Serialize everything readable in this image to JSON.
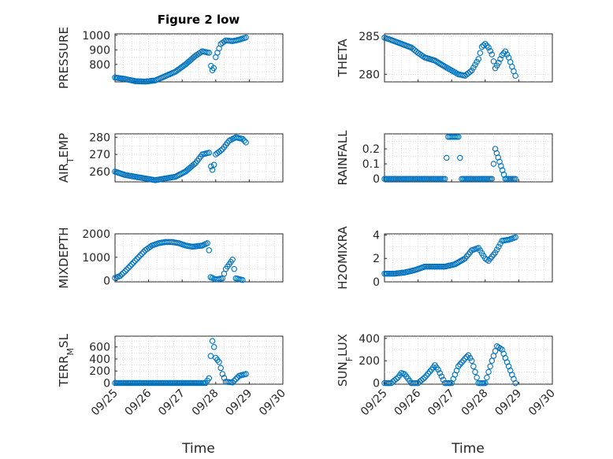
{
  "figure": {
    "title": "Figure 2 low",
    "xlabel": "Time",
    "marker_color": "#0072bd",
    "x_ticks": [
      "09/25",
      "09/26",
      "09/27",
      "09/28",
      "09/29",
      "09/30"
    ]
  },
  "chart_data": [
    {
      "type": "scatter",
      "marker": "circle",
      "ylabel": "PRESSURE",
      "xlim": [
        0,
        5
      ],
      "ylim": [
        680,
        1010
      ],
      "yticks": [
        800,
        900,
        1000
      ],
      "grid": true,
      "x": [
        0,
        0.3,
        0.6,
        0.9,
        1.2,
        1.5,
        1.8,
        2.1,
        2.4,
        2.6,
        2.8,
        2.86,
        2.9,
        2.94,
        3.0,
        3.15,
        3.3,
        3.5,
        3.7,
        3.9
      ],
      "y": [
        710,
        700,
        685,
        682,
        690,
        720,
        750,
        800,
        860,
        890,
        880,
        790,
        760,
        775,
        850,
        940,
        965,
        960,
        970,
        985
      ]
    },
    {
      "type": "scatter",
      "marker": "circle",
      "ylabel": "THETA",
      "xlim": [
        0,
        5
      ],
      "ylim": [
        279,
        285.3
      ],
      "yticks": [
        280,
        285
      ],
      "grid": true,
      "x": [
        0,
        0.2,
        0.5,
        0.8,
        1.0,
        1.2,
        1.5,
        1.8,
        2.0,
        2.2,
        2.4,
        2.6,
        2.8,
        2.9,
        3.0,
        3.1,
        3.2,
        3.3,
        3.4,
        3.5,
        3.6,
        3.7,
        3.8,
        3.9
      ],
      "y": [
        284.8,
        284.5,
        284.0,
        283.5,
        282.8,
        282.2,
        281.8,
        281.0,
        280.5,
        280.0,
        279.8,
        280.5,
        282.0,
        283.6,
        284.0,
        283.5,
        282.6,
        280.8,
        281.5,
        282.5,
        283.0,
        282.2,
        281.0,
        279.8
      ]
    },
    {
      "type": "scatter",
      "marker": "circle",
      "ylabel": "AIR_TEMP",
      "xlim": [
        0,
        5
      ],
      "ylim": [
        254,
        282
      ],
      "yticks": [
        260,
        270,
        280
      ],
      "grid": true,
      "x": [
        0,
        0.3,
        0.6,
        0.9,
        1.2,
        1.5,
        1.8,
        2.1,
        2.4,
        2.6,
        2.8,
        2.86,
        2.9,
        2.95,
        3.0,
        3.2,
        3.4,
        3.6,
        3.8,
        3.9
      ],
      "y": [
        260,
        258,
        257,
        256,
        255,
        256,
        257,
        260,
        265,
        270,
        271,
        263,
        261,
        264,
        270,
        273,
        278,
        280,
        279,
        277
      ]
    },
    {
      "type": "scatter",
      "marker": "circle",
      "ylabel": "RAINFALL",
      "xlim": [
        0,
        5
      ],
      "ylim": [
        -0.02,
        0.3
      ],
      "yticks": [
        0,
        0.1,
        0.2
      ],
      "grid": true,
      "x": [
        0,
        0.3,
        0.6,
        0.9,
        1.2,
        1.5,
        1.8,
        1.9,
        2.0,
        2.1,
        2.2,
        2.3,
        2.6,
        2.9,
        3.2,
        3.3,
        3.6,
        3.9
      ],
      "y": [
        0,
        0,
        0,
        0,
        0,
        0,
        0,
        0.28,
        0.28,
        0.28,
        0.28,
        0,
        0,
        0,
        0,
        0.2,
        0,
        0
      ]
    },
    {
      "type": "scatter",
      "marker": "circle",
      "ylabel": "MIXDEPTH",
      "xlim": [
        0,
        5
      ],
      "ylim": [
        -50,
        2000
      ],
      "yticks": [
        0,
        1000,
        2000
      ],
      "grid": true,
      "x": [
        0,
        0.15,
        0.3,
        0.5,
        0.7,
        0.9,
        1.1,
        1.3,
        1.5,
        1.7,
        1.9,
        2.1,
        2.3,
        2.6,
        2.75,
        2.8,
        2.85,
        3.0,
        3.2,
        3.3,
        3.5,
        3.6,
        3.8
      ],
      "y": [
        120,
        200,
        400,
        700,
        1000,
        1300,
        1500,
        1600,
        1650,
        1650,
        1600,
        1500,
        1450,
        1500,
        1600,
        1300,
        150,
        50,
        100,
        500,
        900,
        100,
        30
      ]
    },
    {
      "type": "scatter",
      "marker": "circle",
      "ylabel": "H2OMIXRA",
      "xlim": [
        0,
        5
      ],
      "ylim": [
        0,
        4.1
      ],
      "yticks": [
        0,
        2,
        4
      ],
      "grid": true,
      "x": [
        0,
        0.3,
        0.6,
        0.9,
        1.2,
        1.5,
        1.8,
        2.1,
        2.4,
        2.6,
        2.8,
        3.0,
        3.1,
        3.3,
        3.5,
        3.7,
        3.9
      ],
      "y": [
        0.7,
        0.7,
        0.8,
        1.0,
        1.3,
        1.3,
        1.3,
        1.5,
        2.0,
        2.7,
        2.9,
        2.0,
        1.8,
        2.5,
        3.5,
        3.6,
        3.8
      ]
    },
    {
      "type": "scatter",
      "marker": "circle",
      "ylabel": "TERR_MSL",
      "xlim": [
        0,
        5
      ],
      "ylim": [
        -20,
        780
      ],
      "yticks": [
        0,
        200,
        400,
        600
      ],
      "grid": true,
      "x": [
        0,
        0.3,
        0.6,
        0.9,
        1.2,
        1.5,
        1.8,
        2.1,
        2.4,
        2.7,
        2.8,
        2.85,
        2.9,
        2.95,
        3.0,
        3.1,
        3.2,
        3.3,
        3.5,
        3.7,
        3.9
      ],
      "y": [
        0,
        0,
        0,
        0,
        0,
        0,
        0,
        0,
        0,
        0,
        80,
        450,
        700,
        600,
        420,
        350,
        150,
        20,
        10,
        120,
        150
      ]
    },
    {
      "type": "scatter",
      "marker": "circle",
      "ylabel": "SUN_FLUX",
      "xlim": [
        0,
        5
      ],
      "ylim": [
        -10,
        420
      ],
      "yticks": [
        0,
        200,
        400
      ],
      "grid": true,
      "x": [
        0,
        0.2,
        0.4,
        0.5,
        0.6,
        0.8,
        1.0,
        1.2,
        1.4,
        1.5,
        1.6,
        1.8,
        2.0,
        2.2,
        2.4,
        2.5,
        2.6,
        2.8,
        3.0,
        3.2,
        3.35,
        3.5,
        3.7,
        3.9
      ],
      "y": [
        0,
        0,
        50,
        90,
        80,
        0,
        0,
        50,
        120,
        160,
        120,
        0,
        0,
        150,
        220,
        250,
        200,
        0,
        0,
        200,
        330,
        300,
        150,
        0
      ]
    }
  ]
}
